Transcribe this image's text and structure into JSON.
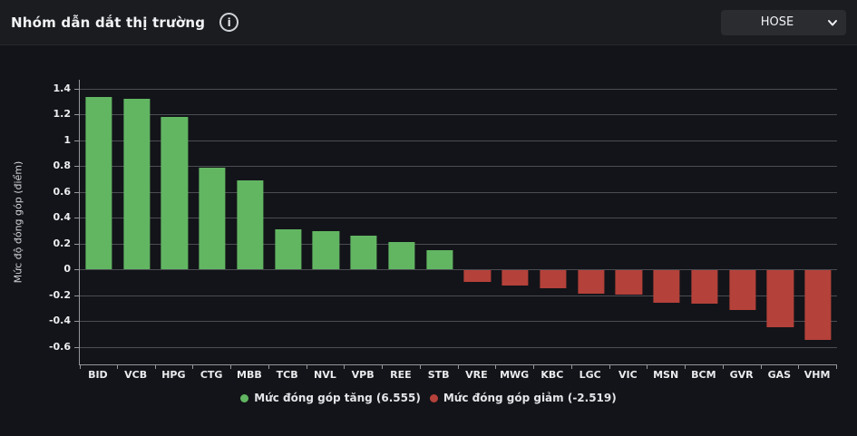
{
  "header": {
    "title": "Nhóm dẫn dắt thị trường",
    "info_icon": "info-circle-icon",
    "info_glyph": "i",
    "exchange_dropdown": {
      "value": "HOSE",
      "icon": "chevron-down-icon"
    }
  },
  "chart_data": {
    "type": "bar",
    "title": "",
    "xlabel": "",
    "ylabel": "Mức độ đóng góp (điểm)",
    "categories": [
      "BID",
      "VCB",
      "HPG",
      "CTG",
      "MBB",
      "TCB",
      "NVL",
      "VPB",
      "REE",
      "STB",
      "VRE",
      "MWG",
      "KBC",
      "LGC",
      "VIC",
      "MSN",
      "BCM",
      "GVR",
      "GAS",
      "VHM"
    ],
    "values": [
      1.34,
      1.32,
      1.18,
      0.79,
      0.69,
      0.31,
      0.3,
      0.26,
      0.21,
      0.15,
      -0.09,
      -0.12,
      -0.14,
      -0.18,
      -0.19,
      -0.25,
      -0.26,
      -0.31,
      -0.44,
      -0.54
    ],
    "ylim": [
      -0.735,
      1.47
    ],
    "yticks": [
      1.4,
      1.2,
      1,
      0.8,
      0.6,
      0.4,
      0.2,
      0,
      -0.2,
      -0.4,
      -0.6
    ],
    "grid": true,
    "legend_position": "bottom",
    "colors": {
      "positive": "#62b662",
      "negative": "#b4413a",
      "background": "#131419",
      "gridline": "#4b4d52",
      "axis": "#94969b"
    },
    "legend": [
      {
        "label": "Mức đóng góp tăng (6.555)",
        "color": "#62b662"
      },
      {
        "label": "Mức đóng góp giảm (-2.519)",
        "color": "#b4413a"
      }
    ]
  }
}
